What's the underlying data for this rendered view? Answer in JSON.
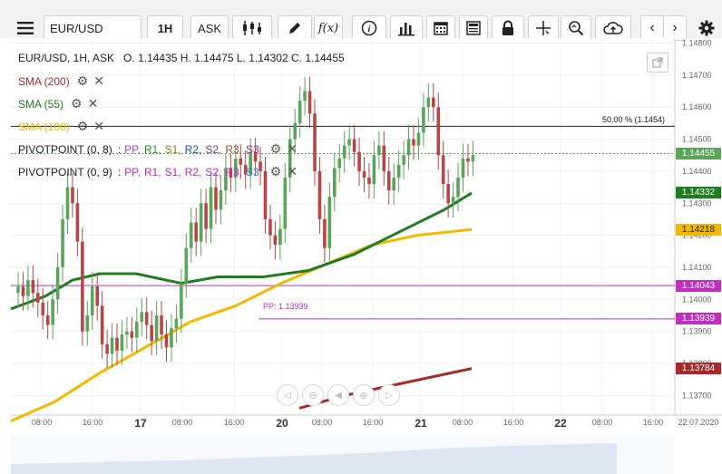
{
  "toolbar": {
    "symbol": "EUR/USD",
    "timeframe": "1H",
    "price_side": "ASK"
  },
  "header": {
    "instrument_line": "EUR/USD, 1H, ASK",
    "open_label": "O.",
    "open": "1.14435",
    "high_label": "H.",
    "high": "1.14475",
    "low_label": "L.",
    "low": "1.14302",
    "close_label": "C.",
    "close": "1.14455"
  },
  "indicators": [
    {
      "label": "SMA (200)",
      "color": "#a52a2a"
    },
    {
      "label": "SMA (55)",
      "color": "#1e7d1e"
    },
    {
      "label": "SMA (100)",
      "color": "#f5b800"
    }
  ],
  "pivots": [
    {
      "label": "PIVOTPOINT (0, 8)",
      "parts": [
        "PP,",
        "R1,",
        "S1,",
        "R2,",
        "S2,",
        "R3,",
        "S3"
      ],
      "colors": [
        "#b03cb0",
        "#2a8a2a",
        "#9a7a1a",
        "#1d4fa0",
        "#7a3aa0",
        "#a0522d",
        "#a0288c"
      ]
    },
    {
      "label": "PIVOTPOINT (0, 9)",
      "parts": [
        "PP,",
        "R1,",
        "S1,",
        "R2,",
        "S2,",
        "R3,",
        "S3"
      ],
      "colors": [
        "#c030c0",
        "#c030c0",
        "#c030c0",
        "#c030c0",
        "#c030c0",
        "#c030c0",
        "#1e90c0"
      ]
    }
  ],
  "fib_label": "50.00 % (1.1454)",
  "pp_label": "PP: 1.13939",
  "price_axis": [
    "1.14800",
    "1.14700",
    "1.14600",
    "1.14500",
    "1.14400",
    "1.14300",
    "1.14200",
    "1.14100",
    "1.14000",
    "1.13900",
    "1.13800",
    "1.13700"
  ],
  "price_tags": [
    {
      "value": "1.14455",
      "color": "#5aa55a"
    },
    {
      "value": "1.14332",
      "color": "#1e7d1e"
    },
    {
      "value": "1.14218",
      "color": "#f5b800"
    },
    {
      "value": "1.14043",
      "color": "#c030c0"
    },
    {
      "value": "1.13939",
      "color": "#c030c0"
    },
    {
      "value": "1.13784",
      "color": "#a52a2a"
    }
  ],
  "time_axis": [
    "08:00",
    "16:00",
    "17",
    "08:00",
    "16:00",
    "20",
    "08:00",
    "16:00",
    "21",
    "08:00",
    "16:00",
    "22",
    "08:00",
    "16:00"
  ],
  "time_axis_date": "22.07.2020",
  "colors": {
    "up": "#5aa55a",
    "down": "#b54747"
  },
  "chart_data": {
    "type": "candlestick",
    "symbol": "EUR/USD",
    "timeframe": "1H",
    "ylim": [
      1.1365,
      1.1481
    ],
    "last_close": 1.14455,
    "sma_200_last": 1.13784,
    "sma_55_last": 1.14332,
    "sma_100_last": 1.14218,
    "pivot_pp": 1.13939,
    "pivot_level_2": 1.14043,
    "fib_50": 1.1454
  }
}
